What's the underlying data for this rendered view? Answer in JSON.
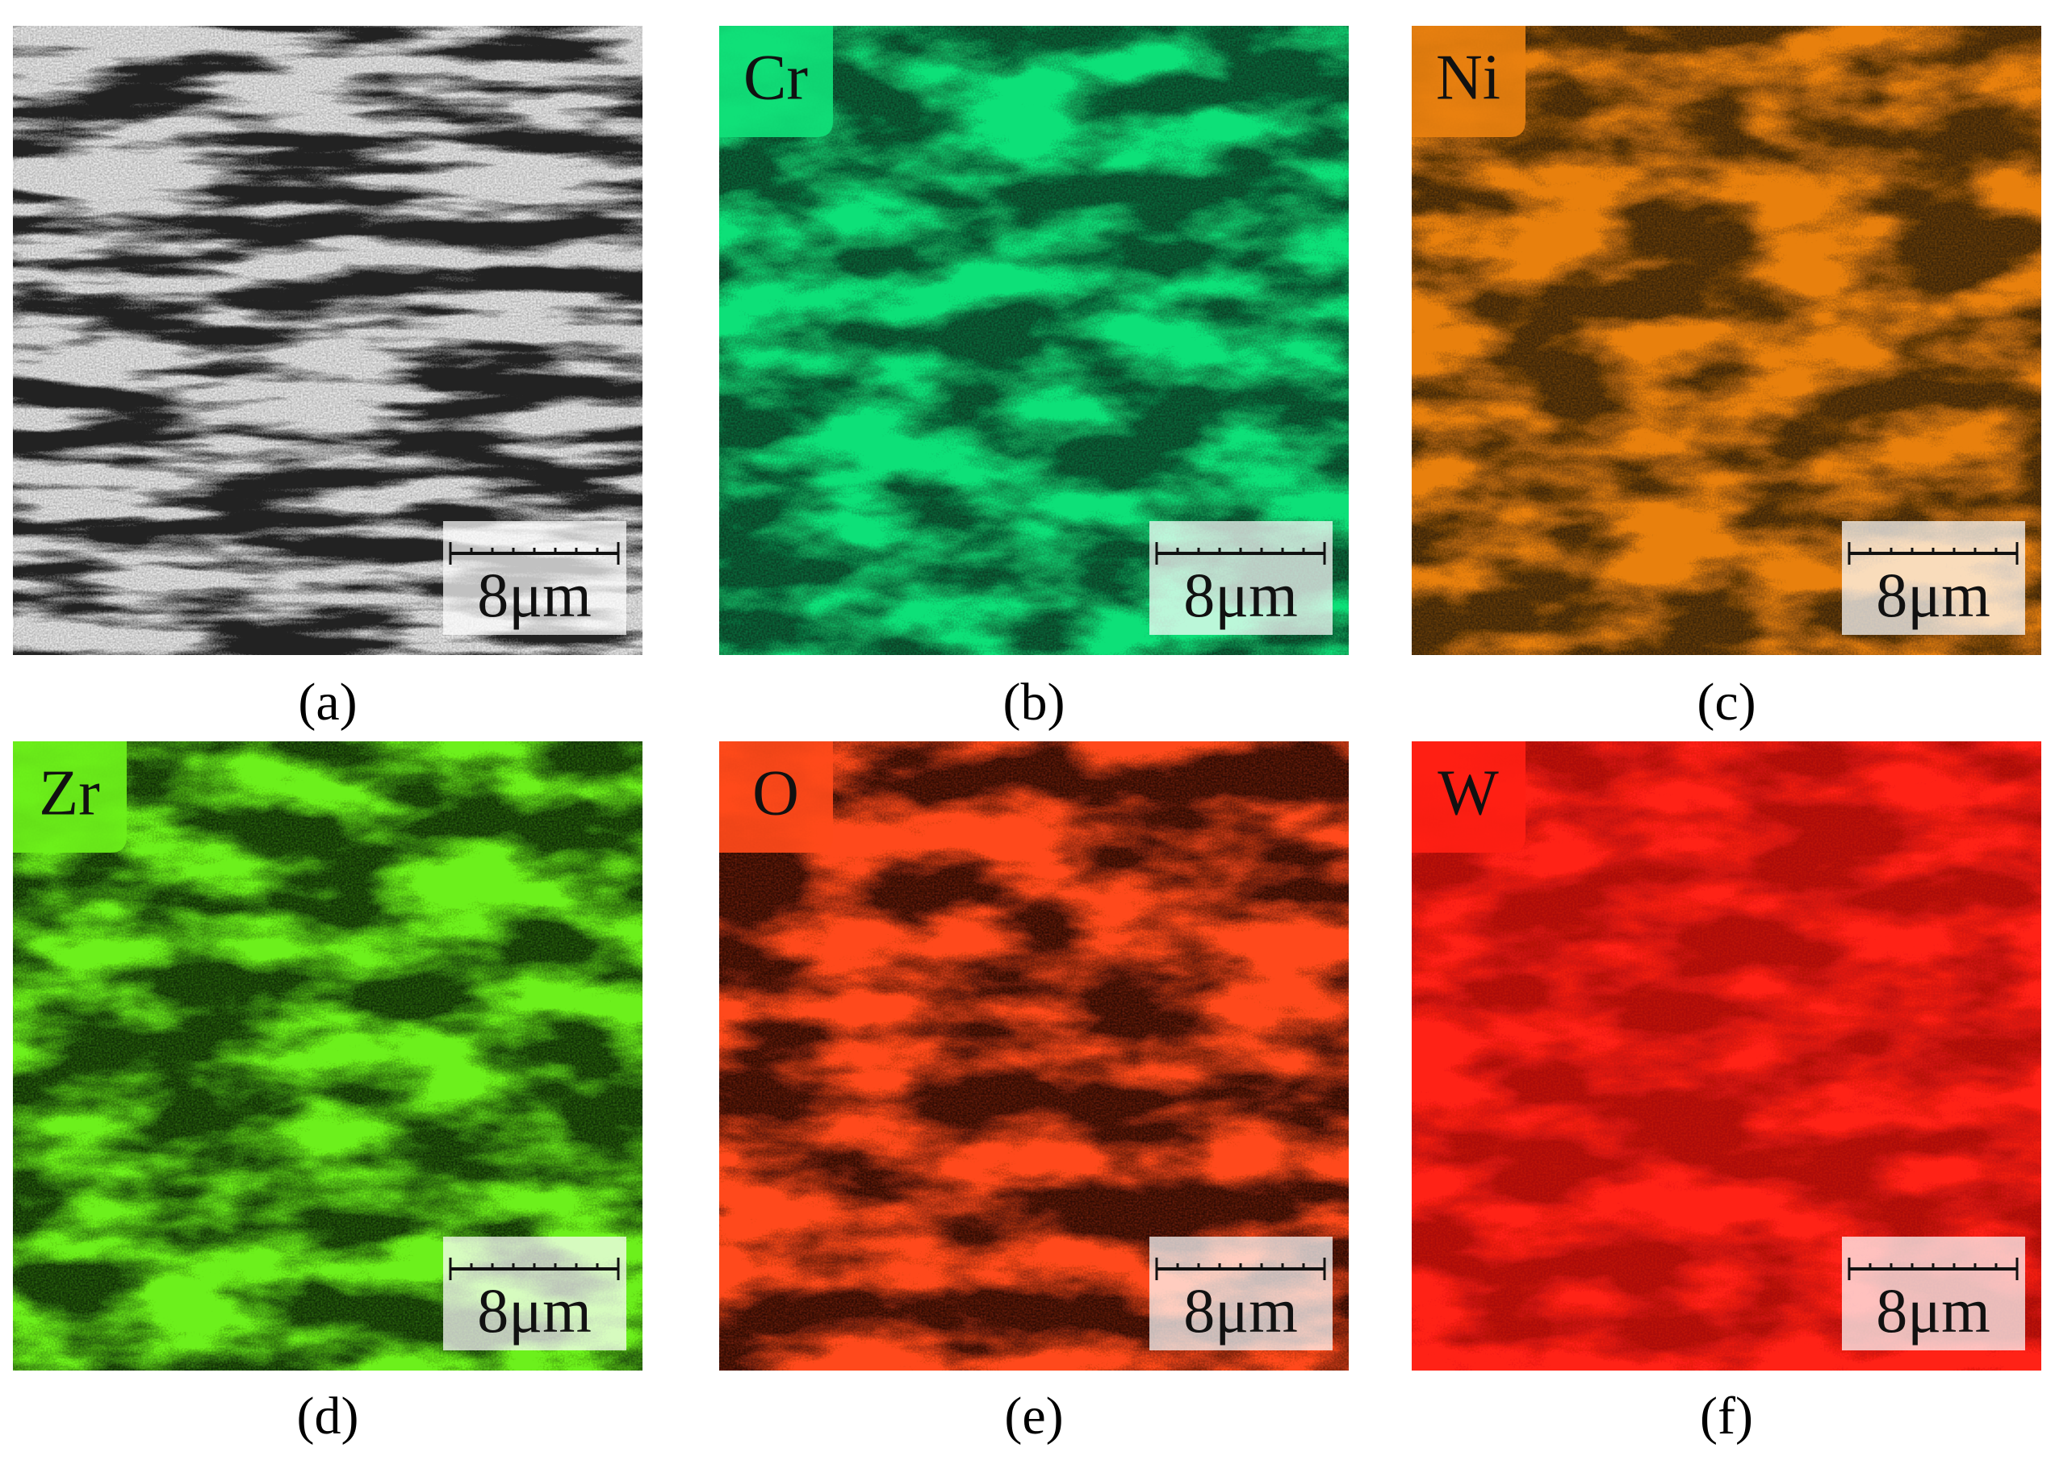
{
  "panels": [
    {
      "caption": "(a)",
      "scale": "8μm",
      "color": "#222222",
      "base": "#e8e8e8"
    },
    {
      "caption": "(b)",
      "element": "Cr",
      "scale": "8μm",
      "color": "#10e078",
      "base": "#0b3f25"
    },
    {
      "caption": "(c)",
      "element": "Ni",
      "scale": "8μm",
      "color": "#e8800f",
      "base": "#3a2409"
    },
    {
      "caption": "(d)",
      "element": "Zr",
      "scale": "8μm",
      "color": "#6cf01a",
      "base": "#0f2c08"
    },
    {
      "caption": "(e)",
      "element": "O",
      "scale": "8μm",
      "color": "#ff4a1a",
      "base": "#2c0a05"
    },
    {
      "caption": "(f)",
      "element": "W",
      "scale": "8μm",
      "color": "#ff2014",
      "base": "#a80d0a"
    }
  ]
}
